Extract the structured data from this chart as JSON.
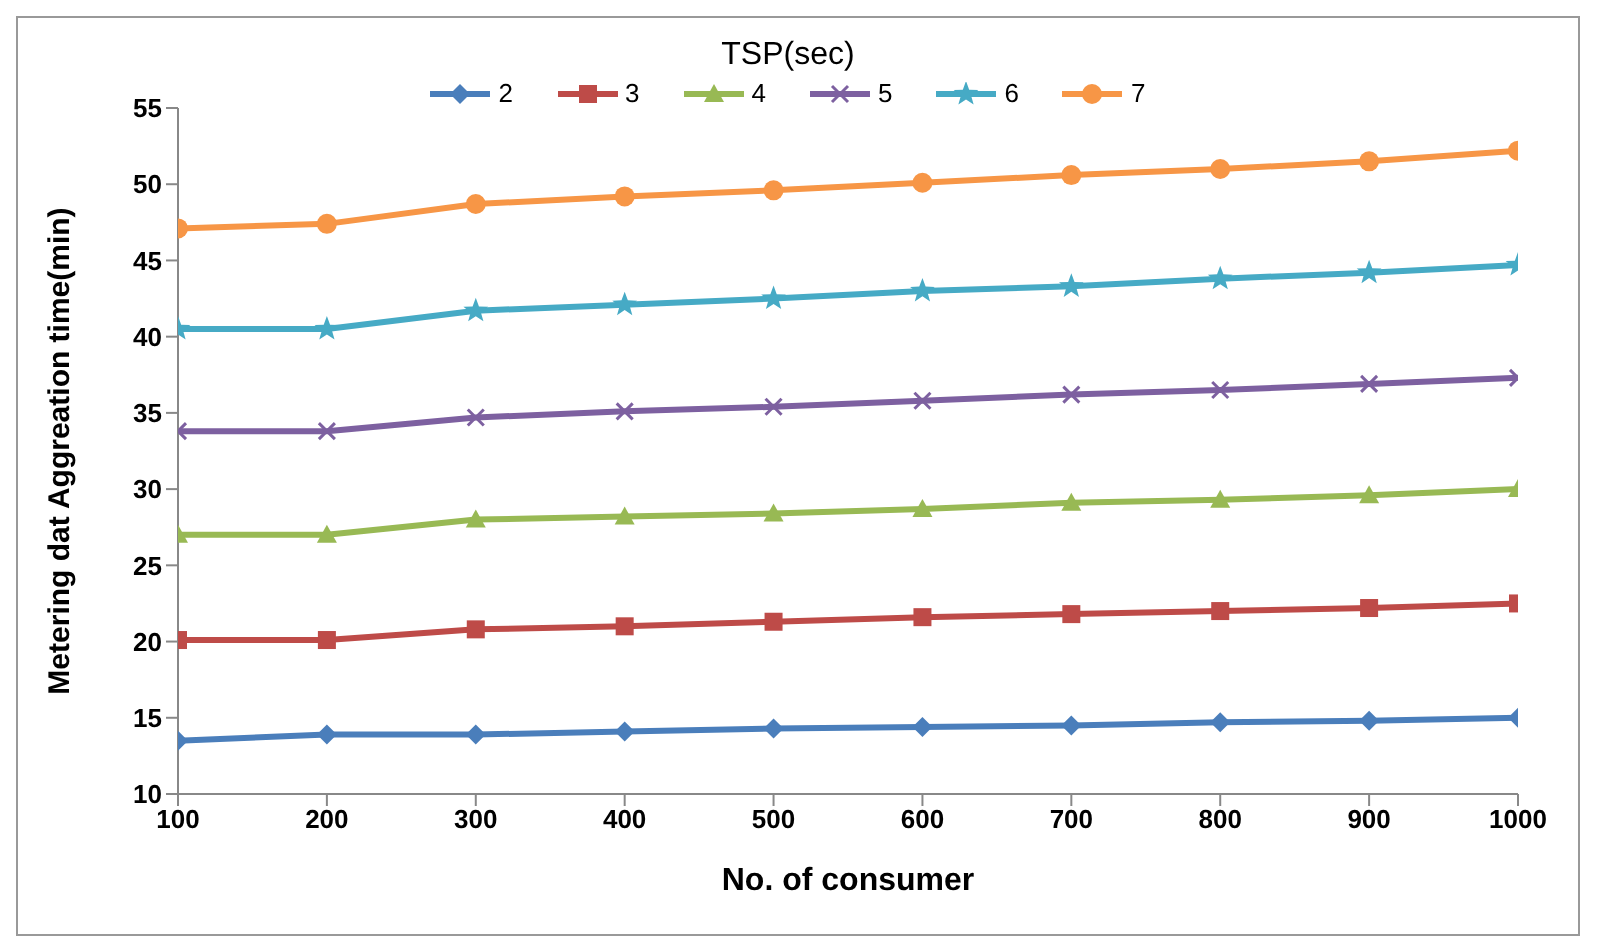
{
  "chart_data": {
    "type": "line",
    "legend_title": "TSP(sec)",
    "xlabel": "No. of consumer",
    "ylabel": "Metering dat Aggreation time(min)",
    "x": [
      100,
      200,
      300,
      400,
      500,
      600,
      700,
      800,
      900,
      1000
    ],
    "xlim": [
      100,
      1000
    ],
    "xticks": [
      100,
      200,
      300,
      400,
      500,
      600,
      700,
      800,
      900,
      1000
    ],
    "ylim": [
      10,
      55
    ],
    "yticks": [
      10,
      15,
      20,
      25,
      30,
      35,
      40,
      45,
      50,
      55
    ],
    "grid": false,
    "legend": "top",
    "series": [
      {
        "name": "2",
        "color": "#4a7ebb",
        "marker": "diamond",
        "values": [
          13.5,
          13.9,
          13.9,
          14.1,
          14.3,
          14.4,
          14.5,
          14.7,
          14.8,
          15.0
        ]
      },
      {
        "name": "3",
        "color": "#be4b48",
        "marker": "square",
        "values": [
          20.1,
          20.1,
          20.8,
          21.0,
          21.3,
          21.6,
          21.8,
          22.0,
          22.2,
          22.5
        ]
      },
      {
        "name": "4",
        "color": "#98b954",
        "marker": "triangle",
        "values": [
          27.0,
          27.0,
          28.0,
          28.2,
          28.4,
          28.7,
          29.1,
          29.3,
          29.6,
          30.0
        ]
      },
      {
        "name": "5",
        "color": "#7d60a0",
        "marker": "cross",
        "values": [
          33.8,
          33.8,
          34.7,
          35.1,
          35.4,
          35.8,
          36.2,
          36.5,
          36.9,
          37.3
        ]
      },
      {
        "name": "6",
        "color": "#46aac5",
        "marker": "star",
        "values": [
          40.5,
          40.5,
          41.7,
          42.1,
          42.5,
          43.0,
          43.3,
          43.8,
          44.2,
          44.7
        ]
      },
      {
        "name": "7",
        "color": "#f79646",
        "marker": "circle",
        "values": [
          47.1,
          47.4,
          48.7,
          49.2,
          49.6,
          50.1,
          50.6,
          51.0,
          51.5,
          52.2
        ]
      }
    ]
  }
}
